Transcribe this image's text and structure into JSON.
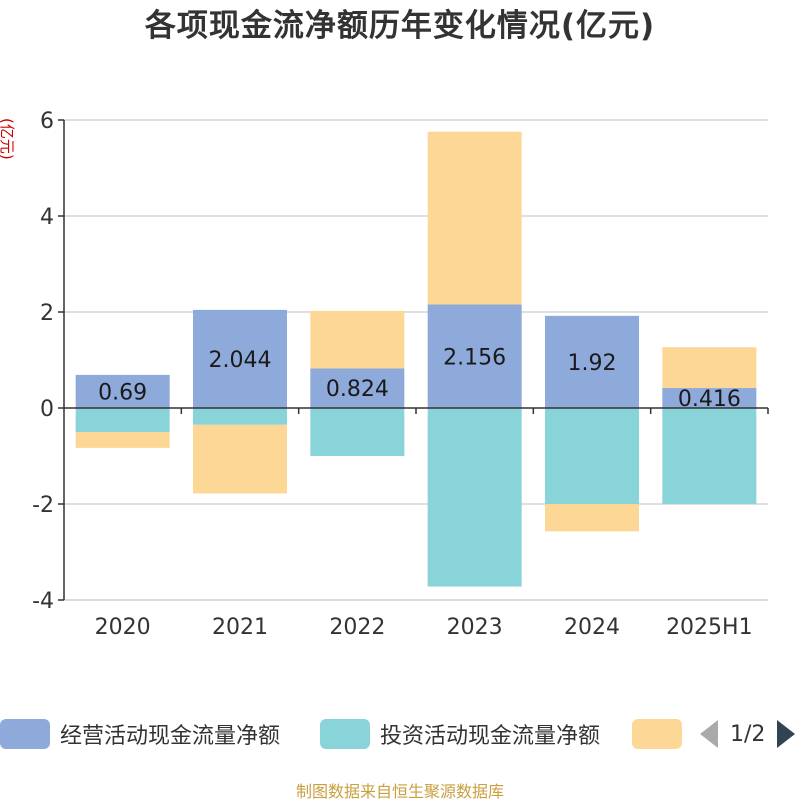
{
  "chart_data": {
    "type": "bar",
    "stacked": true,
    "title": "各项现金流净额历年变化情况(亿元)",
    "ylabel": "(亿元)",
    "categories": [
      "2020",
      "2021",
      "2022",
      "2023",
      "2024",
      "2025H1"
    ],
    "ylim": [
      -4,
      6
    ],
    "yticks": [
      6,
      4,
      2,
      0,
      -2,
      -4
    ],
    "grid": true,
    "legend_position": "bottom",
    "series": [
      {
        "name": "经营活动现金流量净额",
        "color": "#8eaadb",
        "values": [
          0.69,
          2.044,
          0.824,
          2.156,
          1.92,
          0.416
        ],
        "labels": [
          "0.69",
          "2.044",
          "0.824",
          "2.156",
          "1.92",
          "0.416"
        ]
      },
      {
        "name": "投资活动现金流量净额",
        "color": "#88d4d8",
        "values": [
          -0.5,
          -0.35,
          -1.0,
          -3.72,
          -2.0,
          -2.0
        ]
      },
      {
        "name": "",
        "color": "#fdd795",
        "values": [
          -0.33,
          -1.43,
          1.2,
          3.6,
          -0.57,
          0.85
        ]
      }
    ]
  },
  "legend": {
    "pager_text": "1/2"
  },
  "source": "制图数据来自恒生聚源数据库"
}
